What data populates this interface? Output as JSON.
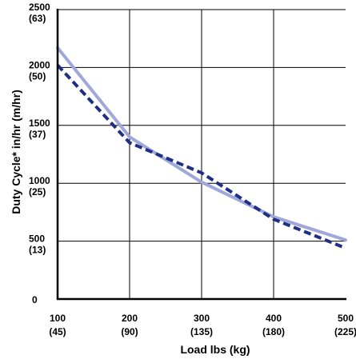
{
  "chart_data": {
    "type": "line",
    "xlabel": "Load lbs (kg)",
    "ylabel": "Duty Cycle* in/hr (m/hr)",
    "xlim": [
      100,
      500
    ],
    "ylim": [
      0,
      2500
    ],
    "grid": true,
    "x_ticks": [
      {
        "value": 100,
        "label": "100",
        "sublabel": "(45)"
      },
      {
        "value": 200,
        "label": "200",
        "sublabel": "(90)"
      },
      {
        "value": 300,
        "label": "300",
        "sublabel": "(135)"
      },
      {
        "value": 400,
        "label": "400",
        "sublabel": "(180)"
      },
      {
        "value": 500,
        "label": "500",
        "sublabel": "(225)"
      }
    ],
    "y_ticks": [
      {
        "value": 0,
        "label": "0",
        "sublabel": ""
      },
      {
        "value": 500,
        "label": "500",
        "sublabel": "(13)"
      },
      {
        "value": 1000,
        "label": "1000",
        "sublabel": "(25)"
      },
      {
        "value": 1500,
        "label": "1500",
        "sublabel": "(37)"
      },
      {
        "value": 2000,
        "label": "2000",
        "sublabel": "(50)"
      },
      {
        "value": 2500,
        "label": "2500",
        "sublabel": "(63)"
      }
    ],
    "series": [
      {
        "style": "solid",
        "color": "#9fa8d8",
        "x": [
          100,
          200,
          300,
          400,
          500
        ],
        "y": [
          2170,
          1400,
          1010,
          710,
          510
        ]
      },
      {
        "style": "dashed",
        "color": "#1f2f86",
        "x": [
          100,
          200,
          250,
          300,
          400,
          500
        ],
        "y": [
          2020,
          1350,
          1220,
          1090,
          690,
          440
        ]
      }
    ]
  }
}
